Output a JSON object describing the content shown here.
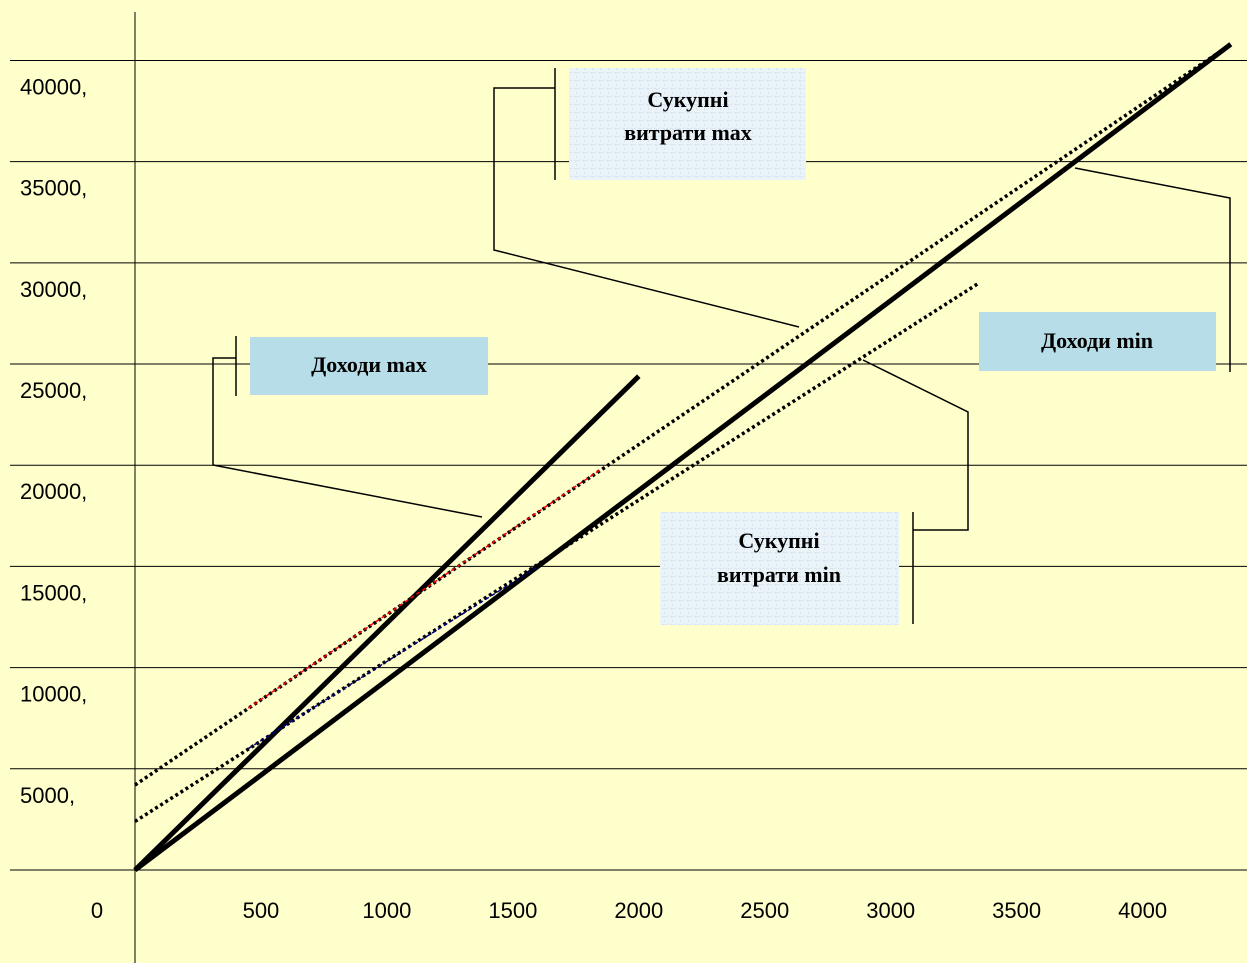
{
  "chart_data": {
    "type": "line",
    "title": "",
    "xlabel": "",
    "ylabel": "",
    "xlim": [
      0,
      4400
    ],
    "ylim": [
      0,
      42000
    ],
    "x_ticks": [
      0,
      500,
      1000,
      1500,
      2000,
      2500,
      3000,
      3500,
      4000
    ],
    "y_ticks": [
      5000,
      10000,
      15000,
      20000,
      25000,
      30000,
      35000,
      40000
    ],
    "x_tick_labels": [
      "0",
      "500",
      "1000",
      "1500",
      "2000",
      "2500",
      "3000",
      "3500",
      "4000"
    ],
    "y_tick_labels": [
      "5000,",
      "10000,",
      "15000,",
      "20000,",
      "25000,",
      "30000,",
      "35000,",
      "40000,"
    ],
    "grid": "horizontal",
    "series": [
      {
        "name": "Доходи max",
        "style": "solid",
        "color": "#000000",
        "x": [
          0,
          2000
        ],
        "y": [
          0,
          24400
        ]
      },
      {
        "name": "Доходи min",
        "style": "solid",
        "color": "#000000",
        "x": [
          0,
          4350
        ],
        "y": [
          0,
          40800
        ]
      },
      {
        "name": "Сукупні витрати max",
        "style": "dotted",
        "color": "#000000",
        "x": [
          0,
          4350
        ],
        "y": [
          4200,
          40800
        ]
      },
      {
        "name": "Сукупні витрати min",
        "style": "dotted",
        "color": "#000000",
        "x": [
          0,
          3350
        ],
        "y": [
          2400,
          29000
        ]
      }
    ],
    "highlights": [
      {
        "color": "#ff0000",
        "x": [
          450,
          1850
        ],
        "y": [
          8000,
          19800
        ]
      },
      {
        "color": "#000080",
        "x": [
          450,
          1600
        ],
        "y": [
          6000,
          15000
        ]
      }
    ],
    "annotations": [
      {
        "key": "income_max",
        "lines": [
          "Доходи max"
        ],
        "fill": "#b7dde8"
      },
      {
        "key": "costs_max",
        "lines": [
          "Сукупні",
          "витрати max"
        ],
        "fill": "#eaf3f8"
      },
      {
        "key": "income_min",
        "lines": [
          "Доходи min"
        ],
        "fill": "#b7dde8"
      },
      {
        "key": "costs_min",
        "lines": [
          "Сукупні",
          "витрати min"
        ],
        "fill": "#eaf3f8"
      }
    ]
  }
}
